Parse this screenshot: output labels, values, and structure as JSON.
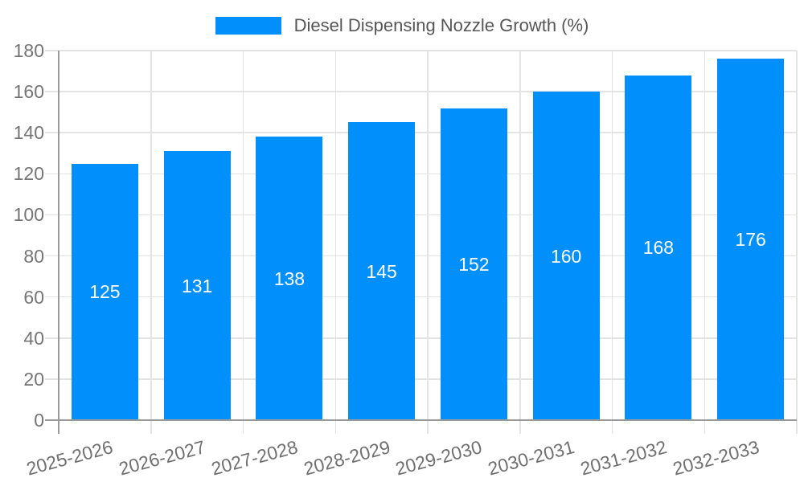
{
  "legend": {
    "label": "Diesel Dispensing Nozzle Growth (%)"
  },
  "colors": {
    "bar": "#008ffb",
    "grid": "#e3e3e3",
    "axis": "#9a9a9a",
    "tick_label": "#757575",
    "x_label": "#707070",
    "legend_text": "#565656",
    "data_label": "#ffffff",
    "background": "#ffffff"
  },
  "chart_data": {
    "type": "bar",
    "title": "Diesel Dispensing Nozzle Growth (%)",
    "categories": [
      "2025-2026",
      "2026-2027",
      "2027-2028",
      "2028-2029",
      "2029-2030",
      "2030-2031",
      "2031-2032",
      "2032-2033"
    ],
    "values": [
      125,
      131,
      138,
      145,
      152,
      160,
      168,
      176
    ],
    "xlabel": "",
    "ylabel": "",
    "ylim": [
      0,
      180
    ],
    "ytick_step": 20,
    "yticks": [
      0,
      20,
      40,
      60,
      80,
      100,
      120,
      140,
      160,
      180
    ],
    "grid": true,
    "legend_position": "top",
    "bar_label_position": "center",
    "x_label_rotation_deg": -15
  }
}
